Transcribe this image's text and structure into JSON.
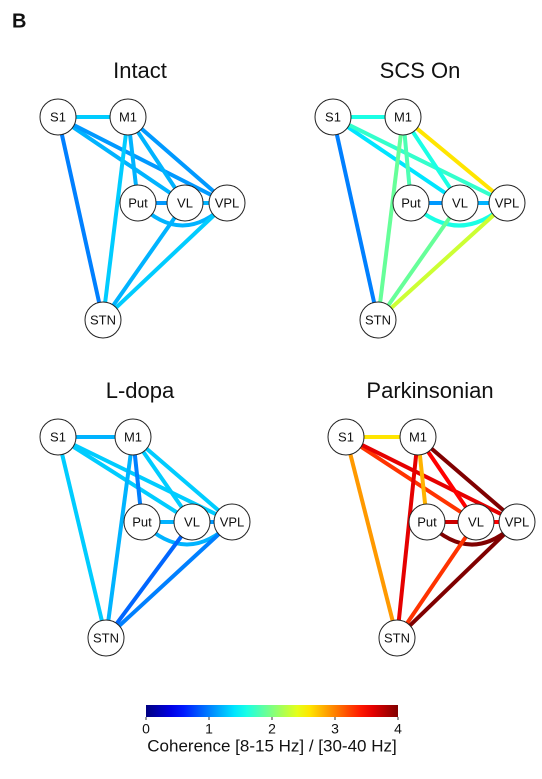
{
  "figure_label": "B",
  "nodes": [
    "S1",
    "M1",
    "Put",
    "VL",
    "VPL",
    "STN"
  ],
  "panels": [
    {
      "title": "Intact",
      "edges": [
        {
          "from": 0,
          "to": 1,
          "value": 1.3
        },
        {
          "from": 0,
          "to": 3,
          "value": 1.2
        },
        {
          "from": 0,
          "to": 4,
          "value": 1.1
        },
        {
          "from": 0,
          "to": 5,
          "value": 1.0
        },
        {
          "from": 1,
          "to": 2,
          "value": 1.2
        },
        {
          "from": 1,
          "to": 3,
          "value": 1.2
        },
        {
          "from": 1,
          "to": 4,
          "value": 1.1
        },
        {
          "from": 1,
          "to": 5,
          "value": 1.3
        },
        {
          "from": 2,
          "to": 3,
          "value": 1.1
        },
        {
          "from": 3,
          "to": 4,
          "value": 1.2
        },
        {
          "from": 2,
          "to": 4,
          "value": 1.2
        },
        {
          "from": 5,
          "to": 3,
          "value": 1.2
        },
        {
          "from": 5,
          "to": 4,
          "value": 1.3
        }
      ]
    },
    {
      "title": "SCS On",
      "edges": [
        {
          "from": 0,
          "to": 1,
          "value": 1.6
        },
        {
          "from": 0,
          "to": 3,
          "value": 1.4
        },
        {
          "from": 0,
          "to": 4,
          "value": 1.7
        },
        {
          "from": 0,
          "to": 5,
          "value": 1.0
        },
        {
          "from": 1,
          "to": 2,
          "value": 1.8
        },
        {
          "from": 1,
          "to": 3,
          "value": 1.6
        },
        {
          "from": 1,
          "to": 4,
          "value": 2.6
        },
        {
          "from": 1,
          "to": 5,
          "value": 1.9
        },
        {
          "from": 2,
          "to": 3,
          "value": 1.1
        },
        {
          "from": 3,
          "to": 4,
          "value": 1.2
        },
        {
          "from": 2,
          "to": 4,
          "value": 1.6
        },
        {
          "from": 5,
          "to": 3,
          "value": 1.9
        },
        {
          "from": 5,
          "to": 4,
          "value": 2.3
        }
      ]
    },
    {
      "title": "L-dopa",
      "edges": [
        {
          "from": 0,
          "to": 1,
          "value": 1.2
        },
        {
          "from": 0,
          "to": 3,
          "value": 1.3
        },
        {
          "from": 0,
          "to": 4,
          "value": 1.3
        },
        {
          "from": 0,
          "to": 5,
          "value": 1.3
        },
        {
          "from": 1,
          "to": 2,
          "value": 1.0
        },
        {
          "from": 1,
          "to": 3,
          "value": 1.3
        },
        {
          "from": 1,
          "to": 4,
          "value": 1.3
        },
        {
          "from": 1,
          "to": 5,
          "value": 1.2
        },
        {
          "from": 2,
          "to": 3,
          "value": 1.2
        },
        {
          "from": 3,
          "to": 4,
          "value": 1.1
        },
        {
          "from": 2,
          "to": 4,
          "value": 1.2
        },
        {
          "from": 5,
          "to": 3,
          "value": 0.9
        },
        {
          "from": 5,
          "to": 4,
          "value": 1.0
        }
      ]
    },
    {
      "title": "Parkinsonian",
      "edges": [
        {
          "from": 0,
          "to": 1,
          "value": 2.6
        },
        {
          "from": 0,
          "to": 3,
          "value": 3.3
        },
        {
          "from": 0,
          "to": 4,
          "value": 3.6
        },
        {
          "from": 0,
          "to": 5,
          "value": 2.9
        },
        {
          "from": 1,
          "to": 2,
          "value": 2.8
        },
        {
          "from": 1,
          "to": 3,
          "value": 3.5
        },
        {
          "from": 1,
          "to": 4,
          "value": 4.0
        },
        {
          "from": 1,
          "to": 5,
          "value": 3.6
        },
        {
          "from": 2,
          "to": 3,
          "value": 3.7
        },
        {
          "from": 3,
          "to": 4,
          "value": 3.5
        },
        {
          "from": 2,
          "to": 4,
          "value": 4.0
        },
        {
          "from": 5,
          "to": 3,
          "value": 3.3
        },
        {
          "from": 5,
          "to": 4,
          "value": 4.0
        }
      ]
    }
  ],
  "colorbar": {
    "label": "Coherence [8-15 Hz] / [30-40 Hz]",
    "clim": [
      0,
      4
    ],
    "ticks": [
      0,
      1,
      2,
      3,
      4
    ],
    "colormap": "jet"
  }
}
